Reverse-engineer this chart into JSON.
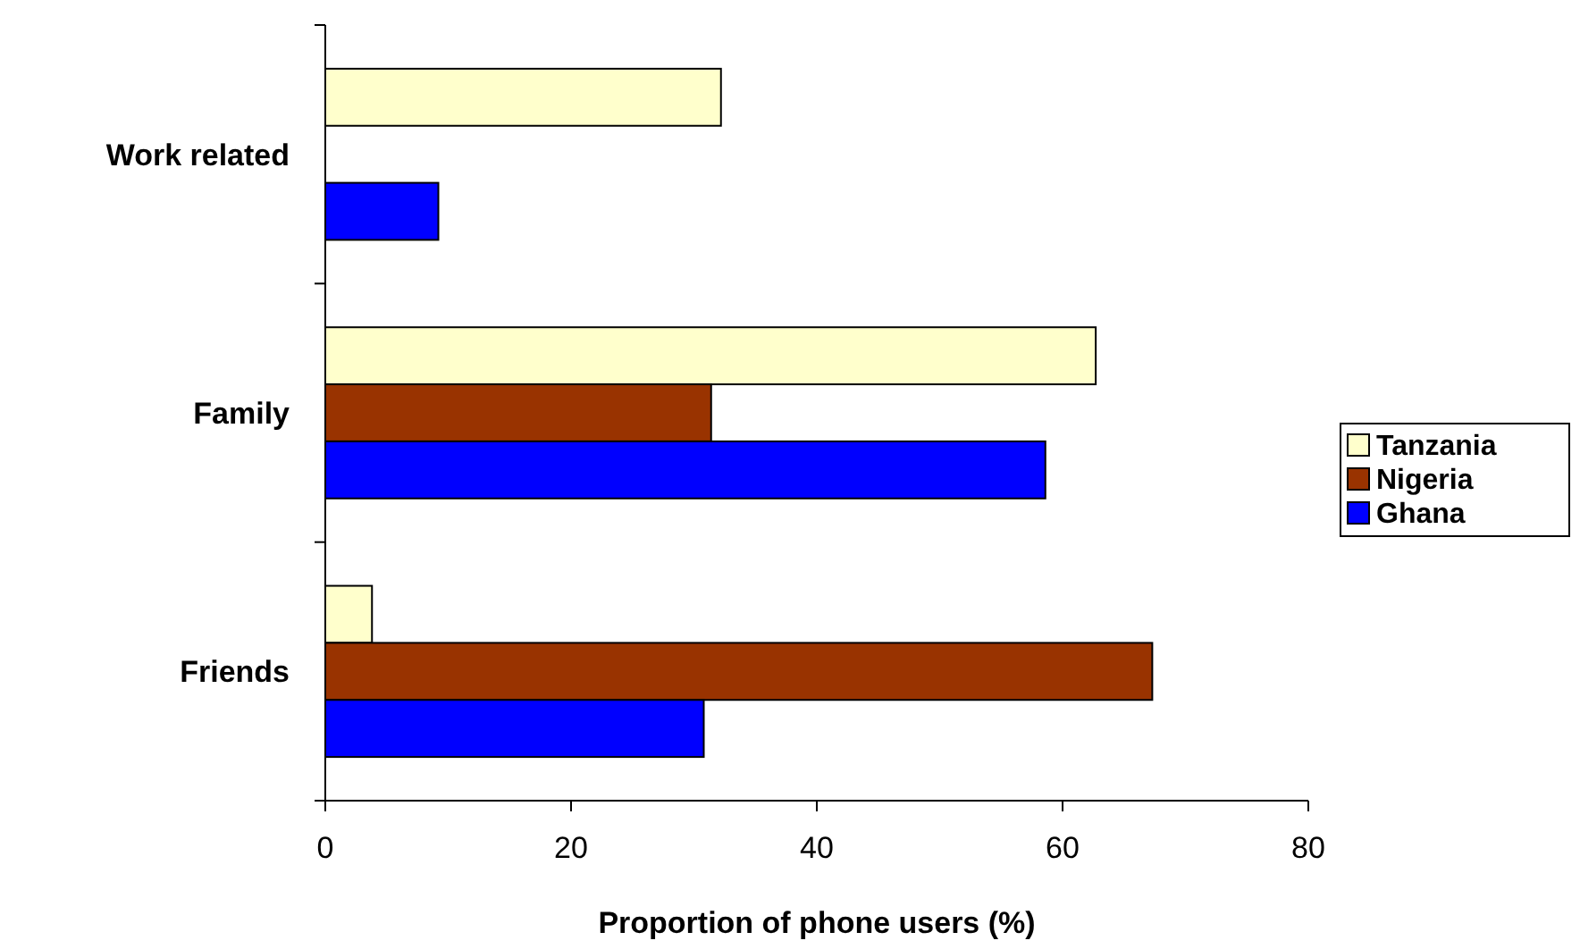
{
  "chart_data": {
    "type": "bar",
    "orientation": "horizontal",
    "categories": [
      "Work related",
      "Family",
      "Friends"
    ],
    "series": [
      {
        "name": "Tanzania",
        "color": "#ffffcc",
        "values": [
          32.2,
          62.7,
          3.8
        ]
      },
      {
        "name": "Nigeria",
        "color": "#993300",
        "values": [
          null,
          31.4,
          67.3
        ]
      },
      {
        "name": "Ghana",
        "color": "#0000ff",
        "values": [
          9.2,
          58.6,
          30.8
        ]
      }
    ],
    "xlabel": "Proportion of phone users (%)",
    "xlim": [
      0,
      80
    ],
    "xticks": [
      0,
      20,
      40,
      60,
      80
    ],
    "legend": "right"
  }
}
